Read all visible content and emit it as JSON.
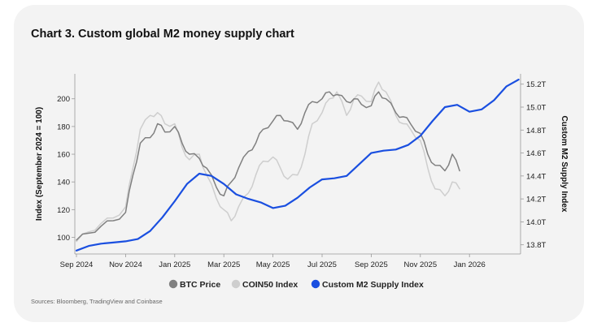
{
  "card": {
    "title": "Chart 3. Custom global M2 money supply chart",
    "source": "Sources: Bloomberg, TradingView and Coinbase"
  },
  "chart_data": {
    "type": "line",
    "title": "Chart 3. Custom global M2 money supply chart",
    "ylabel": "Index (September 2024 = 100)",
    "y2label": "Custom M2 Supply Index",
    "ylim": [
      88,
      218
    ],
    "y2lim": [
      13.72,
      15.29
    ],
    "yticks": [
      100,
      120,
      140,
      160,
      180,
      200
    ],
    "y2ticks": [
      13.8,
      14.0,
      14.2,
      14.4,
      14.6,
      14.8,
      15.0,
      15.2
    ],
    "y2tick_labels": [
      "13.8T",
      "14.0T",
      "14.2T",
      "14.4T",
      "14.6T",
      "14.8T",
      "15.0T",
      "15.2T"
    ],
    "xticks": [
      "Sep 2024",
      "Nov 2024",
      "Jan 2025",
      "Mar 2025",
      "May 2025",
      "Jul 2025",
      "Sep 2025",
      "Nov 2025",
      "Jan 2026"
    ],
    "x_unit": "months since Sep 2024",
    "legend_position": "bottom-center",
    "series": [
      {
        "name": "BTC Price",
        "axis": "left",
        "color": "#808080",
        "x": [
          0,
          0.5,
          1,
          1.5,
          2,
          2.3,
          2.6,
          3,
          3.3,
          3.6,
          4,
          4.3,
          4.6,
          5,
          5.3,
          5.7,
          6,
          6.3,
          6.6,
          7,
          7.3,
          7.6,
          8,
          8.3,
          8.6,
          9,
          9.3,
          9.6,
          10,
          10.3,
          10.6,
          11,
          11.3,
          11.6,
          12,
          12.3,
          12.6,
          13,
          13.3,
          13.6,
          14,
          14.3,
          14.6,
          15,
          15.3,
          15.6
        ],
        "values": [
          98,
          103,
          108,
          112,
          118,
          145,
          168,
          172,
          182,
          176,
          180,
          168,
          160,
          157,
          150,
          136,
          130,
          140,
          150,
          162,
          168,
          178,
          184,
          188,
          184,
          178,
          190,
          198,
          200,
          205,
          203,
          198,
          200,
          196,
          195,
          205,
          200,
          190,
          187,
          182,
          175,
          160,
          152,
          148,
          160,
          148
        ]
      },
      {
        "name": "COIN50 Index",
        "axis": "left",
        "color": "#cecece",
        "x": [
          0,
          0.5,
          1,
          1.5,
          2,
          2.3,
          2.6,
          3,
          3.3,
          3.6,
          4,
          4.3,
          4.6,
          5,
          5.3,
          5.7,
          6,
          6.3,
          6.6,
          7,
          7.3,
          7.6,
          8,
          8.3,
          8.6,
          9,
          9.3,
          9.6,
          10,
          10.3,
          10.6,
          11,
          11.3,
          11.6,
          12,
          12.3,
          12.6,
          13,
          13.3,
          13.6,
          14,
          14.3,
          14.6,
          15,
          15.3,
          15.6
        ],
        "values": [
          97,
          104,
          110,
          114,
          122,
          150,
          178,
          188,
          190,
          182,
          182,
          165,
          156,
          160,
          145,
          128,
          120,
          112,
          122,
          132,
          145,
          155,
          158,
          150,
          142,
          145,
          160,
          182,
          190,
          200,
          205,
          188,
          200,
          202,
          198,
          212,
          205,
          188,
          182,
          178,
          170,
          150,
          135,
          130,
          140,
          135
        ]
      },
      {
        "name": "Custom M2 Supply Index",
        "axis": "right",
        "color": "#1a4fe0",
        "x": [
          0,
          0.5,
          1,
          1.5,
          2,
          2.5,
          3,
          3.5,
          4,
          4.5,
          5,
          5.5,
          6,
          6.5,
          7,
          7.5,
          8,
          8.5,
          9,
          9.5,
          10,
          10.5,
          11,
          11.5,
          12,
          12.5,
          13,
          13.5,
          14,
          14.5,
          15,
          15.5,
          16,
          16.5,
          17,
          17.5,
          18
        ],
        "values": [
          13.75,
          13.79,
          13.81,
          13.82,
          13.83,
          13.85,
          13.92,
          14.04,
          14.18,
          14.33,
          14.42,
          14.4,
          14.33,
          14.24,
          14.2,
          14.17,
          14.12,
          14.14,
          14.21,
          14.3,
          14.37,
          14.38,
          14.4,
          14.5,
          14.6,
          14.62,
          14.63,
          14.67,
          14.75,
          14.88,
          15.0,
          15.02,
          14.96,
          14.98,
          15.06,
          15.18,
          15.24
        ]
      }
    ]
  }
}
